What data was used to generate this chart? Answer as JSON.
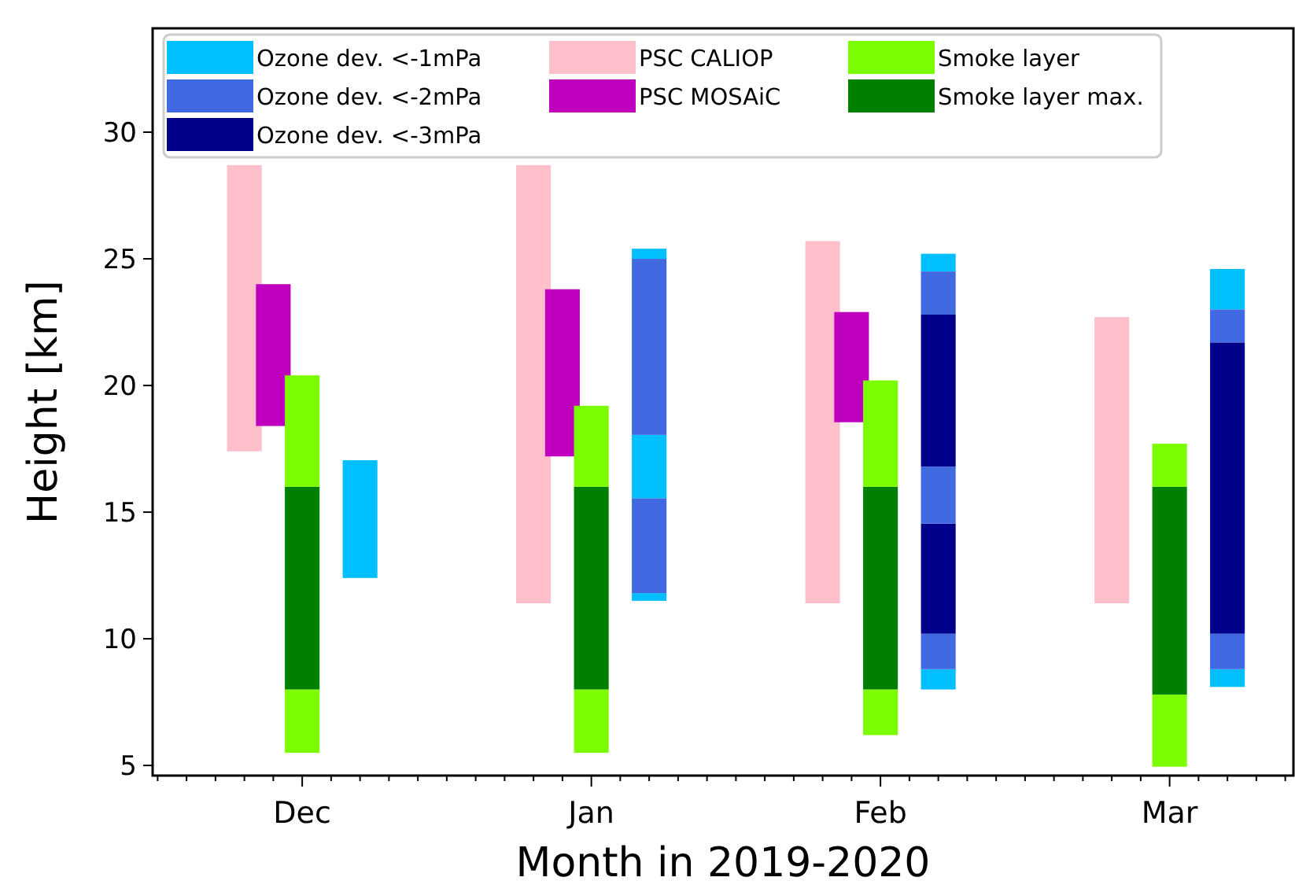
{
  "chart_data": {
    "type": "bar",
    "xlabel": "Month in 2019-2020",
    "ylabel": "Height [km]",
    "categories": [
      null,
      null,
      null,
      null,
      null,
      "Dec",
      null,
      null,
      null,
      null,
      null,
      null,
      null,
      null,
      null,
      "Jan",
      null,
      null,
      null,
      null,
      null,
      null,
      null,
      null,
      null,
      "Feb",
      null,
      null,
      null,
      null,
      null,
      null,
      null,
      null,
      null,
      "Mar",
      null,
      null,
      null,
      null
    ],
    "ylim": [
      4.6,
      34.1
    ],
    "yticks": [
      5,
      10,
      15,
      20,
      25,
      30
    ],
    "legend": "top",
    "series": [
      {
        "name": "Ozone dev. <-1mPa",
        "color": "#00bfff",
        "base": [
          null,
          null,
          null,
          null,
          null,
          null,
          null,
          12.4,
          null,
          null,
          null,
          null,
          null,
          null,
          null,
          null,
          null,
          11.5,
          null,
          null,
          null,
          null,
          null,
          null,
          null,
          null,
          null,
          8.0,
          null,
          null,
          null,
          null,
          null,
          null,
          null,
          null,
          null,
          8.1,
          null,
          null
        ],
        "values": [
          null,
          null,
          null,
          null,
          null,
          null,
          null,
          4.65,
          null,
          null,
          null,
          null,
          null,
          null,
          null,
          null,
          null,
          0.3,
          null,
          null,
          null,
          null,
          null,
          null,
          null,
          null,
          null,
          0.8,
          null,
          null,
          null,
          null,
          null,
          null,
          null,
          null,
          null,
          0.7,
          null,
          null
        ]
      },
      {
        "name": "Ozone dev. <-2mPa",
        "color": "#4169e1",
        "base": [
          null,
          null,
          null,
          null,
          null,
          null,
          null,
          null,
          null,
          null,
          null,
          null,
          null,
          null,
          null,
          null,
          null,
          11.8,
          null,
          null,
          null,
          null,
          null,
          null,
          null,
          null,
          null,
          8.8,
          null,
          null,
          null,
          null,
          null,
          null,
          null,
          null,
          null,
          8.8,
          null,
          null
        ],
        "values": [
          null,
          null,
          null,
          null,
          null,
          null,
          null,
          null,
          null,
          null,
          null,
          null,
          null,
          null,
          null,
          null,
          null,
          3.75,
          null,
          null,
          null,
          null,
          null,
          null,
          null,
          null,
          null,
          1.4,
          null,
          null,
          null,
          null,
          null,
          null,
          null,
          null,
          null,
          1.4,
          null,
          null
        ]
      },
      {
        "name": "Ozone dev. <-3mPa",
        "color": "#00008b",
        "base": [
          null,
          null,
          null,
          null,
          null,
          null,
          null,
          null,
          null,
          null,
          null,
          null,
          null,
          null,
          null,
          null,
          null,
          null,
          null,
          null,
          null,
          null,
          null,
          null,
          null,
          null,
          null,
          10.2,
          null,
          null,
          null,
          null,
          null,
          null,
          null,
          null,
          null,
          10.2,
          null,
          null
        ],
        "values": [
          null,
          null,
          null,
          null,
          null,
          null,
          null,
          null,
          null,
          null,
          null,
          null,
          null,
          null,
          null,
          null,
          null,
          null,
          null,
          null,
          null,
          null,
          null,
          null,
          null,
          null,
          null,
          4.35,
          null,
          null,
          null,
          null,
          null,
          null,
          null,
          null,
          null,
          11.5,
          null,
          null
        ]
      },
      {
        "name": "PSC CALIOP",
        "color": "#ffc0cb",
        "base": [
          null,
          null,
          null,
          17.4,
          null,
          null,
          null,
          null,
          null,
          null,
          null,
          null,
          null,
          11.4,
          null,
          null,
          null,
          null,
          null,
          null,
          null,
          null,
          null,
          11.4,
          null,
          null,
          null,
          null,
          null,
          null,
          null,
          null,
          null,
          11.4,
          null,
          null,
          null,
          null,
          null,
          null
        ],
        "values": [
          null,
          null,
          null,
          11.3,
          null,
          null,
          null,
          null,
          null,
          null,
          null,
          null,
          null,
          17.3,
          null,
          null,
          null,
          null,
          null,
          null,
          null,
          null,
          null,
          14.3,
          null,
          null,
          null,
          null,
          null,
          null,
          null,
          null,
          null,
          11.3,
          null,
          null,
          null,
          null,
          null,
          null
        ]
      },
      {
        "name": "PSC MOSAiC",
        "color": "#bf00bf",
        "base": [
          null,
          null,
          null,
          null,
          18.4,
          null,
          null,
          null,
          null,
          null,
          null,
          null,
          null,
          null,
          17.2,
          null,
          null,
          null,
          null,
          null,
          null,
          null,
          null,
          null,
          18.55,
          null,
          null,
          null,
          null,
          null,
          null,
          null,
          null,
          null,
          null,
          null,
          null,
          null,
          null,
          null
        ],
        "values": [
          null,
          null,
          null,
          null,
          5.6,
          null,
          null,
          null,
          null,
          null,
          null,
          null,
          null,
          null,
          6.6,
          null,
          null,
          null,
          null,
          null,
          null,
          null,
          null,
          null,
          4.35,
          null,
          null,
          null,
          null,
          null,
          null,
          null,
          null,
          null,
          null,
          null,
          null,
          null,
          null,
          null
        ]
      },
      {
        "name": "Smoke layer",
        "color": "#7cfc00",
        "base": [
          null,
          null,
          null,
          null,
          null,
          5.5,
          null,
          null,
          null,
          null,
          null,
          null,
          null,
          null,
          null,
          5.5,
          null,
          null,
          null,
          null,
          null,
          null,
          null,
          null,
          null,
          6.2,
          null,
          null,
          null,
          null,
          null,
          null,
          null,
          null,
          null,
          4.95,
          null,
          null,
          null,
          null
        ],
        "values": [
          null,
          null,
          null,
          null,
          null,
          2.5,
          null,
          null,
          null,
          null,
          null,
          null,
          null,
          null,
          null,
          2.5,
          null,
          null,
          null,
          null,
          null,
          null,
          null,
          null,
          null,
          1.8,
          null,
          null,
          null,
          null,
          null,
          null,
          null,
          null,
          null,
          2.85,
          null,
          null,
          null,
          null
        ]
      },
      {
        "name": "Smoke layer max.",
        "color": "#008000",
        "base": [
          null,
          null,
          null,
          null,
          null,
          8.0,
          null,
          null,
          null,
          null,
          null,
          null,
          null,
          null,
          null,
          8.0,
          null,
          null,
          null,
          null,
          null,
          null,
          null,
          null,
          null,
          8.0,
          null,
          null,
          null,
          null,
          null,
          null,
          null,
          null,
          null,
          7.8,
          null,
          null,
          null,
          null
        ],
        "values": [
          null,
          null,
          null,
          null,
          null,
          8.0,
          null,
          null,
          null,
          null,
          null,
          null,
          null,
          null,
          null,
          8.0,
          null,
          null,
          null,
          null,
          null,
          null,
          null,
          null,
          null,
          8.0,
          null,
          null,
          null,
          null,
          null,
          null,
          null,
          null,
          null,
          8.2,
          null,
          null,
          null,
          null
        ]
      },
      {
        "color": "#7cfc00",
        "base": [
          null,
          null,
          null,
          null,
          null,
          16.0,
          null,
          null,
          null,
          null,
          null,
          null,
          null,
          null,
          null,
          16.0,
          null,
          null,
          null,
          null,
          null,
          null,
          null,
          null,
          null,
          16.0,
          null,
          null,
          null,
          null,
          null,
          null,
          null,
          null,
          null,
          16.0,
          null,
          null,
          null,
          null
        ],
        "values": [
          null,
          null,
          null,
          null,
          null,
          4.4,
          null,
          null,
          null,
          null,
          null,
          null,
          null,
          null,
          null,
          3.2,
          null,
          null,
          null,
          null,
          null,
          null,
          null,
          null,
          null,
          4.2,
          null,
          null,
          null,
          null,
          null,
          null,
          null,
          null,
          null,
          1.7,
          null,
          null,
          null,
          null
        ]
      },
      {
        "color": "#00bfff",
        "base": [
          null,
          null,
          null,
          null,
          null,
          null,
          null,
          null,
          null,
          null,
          null,
          null,
          null,
          null,
          null,
          null,
          null,
          15.55,
          null,
          null,
          null,
          null,
          null,
          null,
          null,
          null,
          null,
          24.5,
          null,
          null,
          null,
          null,
          null,
          null,
          null,
          null,
          null,
          23.0,
          null,
          null
        ],
        "values": [
          null,
          null,
          null,
          null,
          null,
          null,
          null,
          null,
          null,
          null,
          null,
          null,
          null,
          null,
          null,
          null,
          null,
          2.5,
          null,
          null,
          null,
          null,
          null,
          null,
          null,
          null,
          null,
          0.7,
          null,
          null,
          null,
          null,
          null,
          null,
          null,
          null,
          null,
          1.6,
          null,
          null
        ]
      },
      {
        "color": "#00bfff",
        "base": [
          null,
          null,
          null,
          null,
          null,
          null,
          null,
          null,
          null,
          null,
          null,
          null,
          null,
          null,
          null,
          null,
          null,
          25.0,
          null,
          null,
          null,
          null,
          null,
          null,
          null,
          null,
          null,
          null,
          null,
          null,
          null,
          null,
          null,
          null,
          null,
          null,
          null,
          null,
          null,
          null
        ],
        "values": [
          null,
          null,
          null,
          null,
          null,
          null,
          null,
          null,
          null,
          null,
          null,
          null,
          null,
          null,
          null,
          null,
          null,
          0.4,
          null,
          null,
          null,
          null,
          null,
          null,
          null,
          null,
          null,
          null,
          null,
          null,
          null,
          null,
          null,
          null,
          null,
          null,
          null,
          null,
          null,
          null
        ]
      },
      {
        "color": "#4169e1",
        "base": [
          null,
          null,
          null,
          null,
          null,
          null,
          null,
          null,
          null,
          null,
          null,
          null,
          null,
          null,
          null,
          null,
          null,
          18.05,
          null,
          null,
          null,
          null,
          null,
          null,
          null,
          null,
          null,
          14.55,
          null,
          null,
          null,
          null,
          null,
          null,
          null,
          null,
          null,
          21.7,
          null,
          null
        ],
        "values": [
          null,
          null,
          null,
          null,
          null,
          null,
          null,
          null,
          null,
          null,
          null,
          null,
          null,
          null,
          null,
          null,
          null,
          6.95,
          null,
          null,
          null,
          null,
          null,
          null,
          null,
          null,
          null,
          2.25,
          null,
          null,
          null,
          null,
          null,
          null,
          null,
          null,
          null,
          1.3,
          null,
          null
        ]
      },
      {
        "color": "#4169e1",
        "base": [
          null,
          null,
          null,
          null,
          null,
          null,
          null,
          null,
          null,
          null,
          null,
          null,
          null,
          null,
          null,
          null,
          null,
          null,
          null,
          null,
          null,
          null,
          null,
          null,
          null,
          null,
          null,
          22.8,
          null,
          null,
          null,
          null,
          null,
          null,
          null,
          null,
          null,
          null,
          null,
          null
        ],
        "values": [
          null,
          null,
          null,
          null,
          null,
          null,
          null,
          null,
          null,
          null,
          null,
          null,
          null,
          null,
          null,
          null,
          null,
          null,
          null,
          null,
          null,
          null,
          null,
          null,
          null,
          null,
          null,
          1.7,
          null,
          null,
          null,
          null,
          null,
          null,
          null,
          null,
          null,
          null,
          null,
          null
        ]
      },
      {
        "color": "#00008b",
        "base": [
          null,
          null,
          null,
          null,
          null,
          null,
          null,
          null,
          null,
          null,
          null,
          null,
          null,
          null,
          null,
          null,
          null,
          null,
          null,
          null,
          null,
          null,
          null,
          null,
          null,
          null,
          null,
          16.8,
          null,
          null,
          null,
          null,
          null,
          null,
          null,
          null,
          null,
          null,
          null,
          null
        ],
        "values": [
          null,
          null,
          null,
          null,
          null,
          null,
          null,
          null,
          null,
          null,
          null,
          null,
          null,
          null,
          null,
          null,
          null,
          null,
          null,
          null,
          null,
          null,
          null,
          null,
          null,
          null,
          null,
          6.0,
          null,
          null,
          null,
          null,
          null,
          null,
          null,
          null,
          null,
          null,
          null,
          null
        ]
      }
    ]
  }
}
